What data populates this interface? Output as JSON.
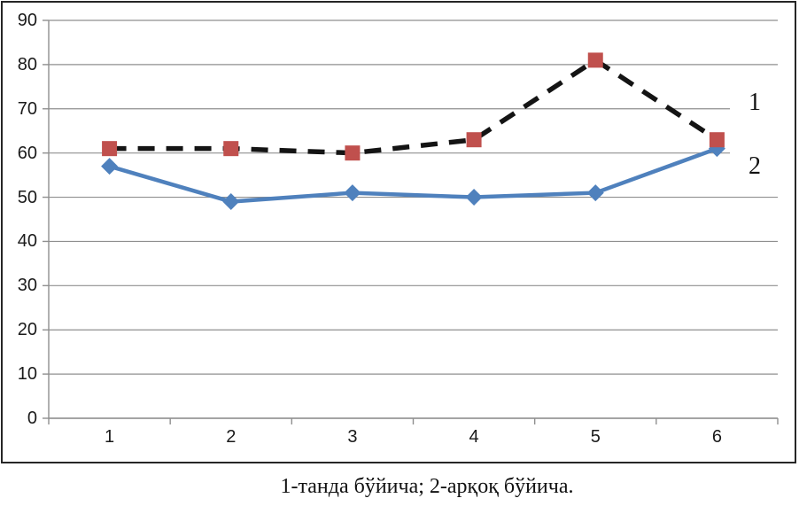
{
  "caption": "1-танда бўйича; 2-арқоқ бўйича.",
  "chart_data": {
    "type": "line",
    "title": "",
    "xlabel": "",
    "ylabel": "",
    "categories": [
      "1",
      "2",
      "3",
      "4",
      "5",
      "6"
    ],
    "series": [
      {
        "name": "1",
        "label": "1",
        "values": [
          61,
          61,
          60,
          63,
          81,
          63
        ],
        "line_color": "#141414",
        "line_style": "dashed",
        "marker": "square",
        "marker_color": "#c0504d"
      },
      {
        "name": "2",
        "label": "2",
        "values": [
          57,
          49,
          51,
          50,
          51,
          61
        ],
        "line_color": "#4f81bd",
        "line_style": "solid",
        "marker": "diamond",
        "marker_color": "#4f81bd"
      }
    ],
    "ylim": [
      0,
      90
    ],
    "yticks": [
      "0",
      "10",
      "20",
      "30",
      "40",
      "50",
      "60",
      "70",
      "80",
      "90"
    ],
    "grid": true,
    "gridline_color": "#8f8f8f",
    "axis_color": "#8f8f8f",
    "frame_color": "#262626",
    "text_color": "#1a1a1a",
    "legend_position": "right-of-last-point"
  }
}
